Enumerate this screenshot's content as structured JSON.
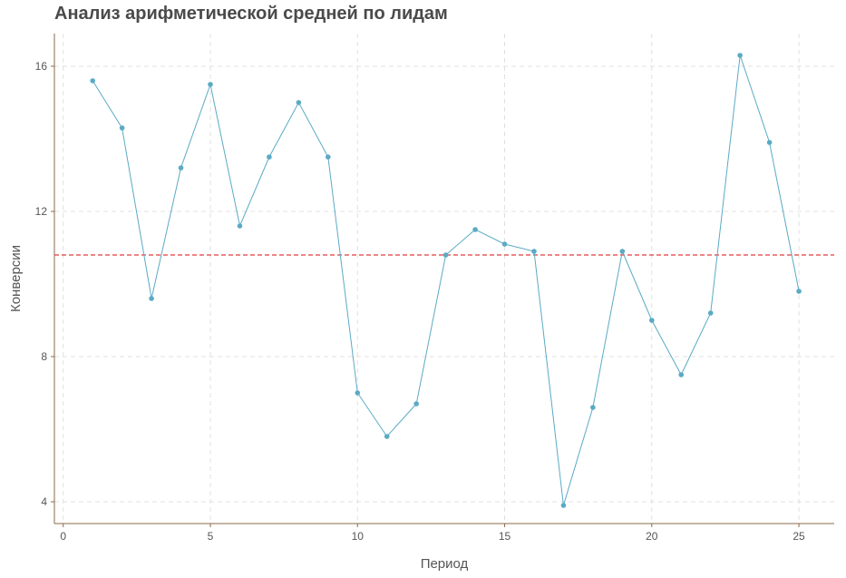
{
  "chart_data": {
    "type": "line",
    "title": "Анализ арифметической средней по лидам",
    "xlabel": "Период",
    "ylabel": "Конверсии",
    "xlim": [
      -0.3,
      26.2
    ],
    "ylim": [
      3.4,
      16.9
    ],
    "x_ticks": [
      0,
      5,
      10,
      15,
      20,
      25
    ],
    "y_ticks": [
      4,
      8,
      12,
      16
    ],
    "grid": true,
    "series": [
      {
        "x": [
          1,
          2,
          3,
          4,
          5,
          6,
          7,
          8,
          9,
          10,
          11,
          12,
          13,
          14,
          15,
          16,
          17,
          18,
          19,
          20,
          21,
          22,
          23,
          24,
          25
        ],
        "values": [
          15.6,
          14.3,
          9.6,
          13.2,
          15.5,
          11.6,
          13.5,
          15.0,
          13.5,
          7.0,
          5.8,
          6.7,
          10.8,
          11.5,
          11.1,
          10.9,
          3.9,
          6.6,
          10.9,
          9.0,
          7.5,
          9.2,
          16.3,
          13.9,
          9.8
        ]
      }
    ],
    "mean_line": 10.8,
    "colors": {
      "line": "#5aaac4",
      "point": "#5aaac4",
      "mean": "#e03c3c",
      "grid": "#e0e0e0",
      "axis": "#8b6a4a",
      "text": "#555555"
    }
  }
}
